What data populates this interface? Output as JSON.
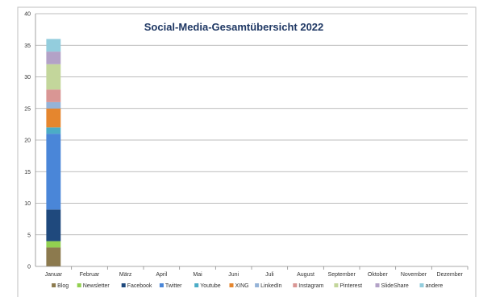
{
  "chart_data": {
    "type": "bar",
    "stacked": true,
    "title": "Social-Media-Gesamtübersicht 2022",
    "title_color": "#1f3864",
    "xlabel": "",
    "ylabel": "",
    "ylim": [
      0,
      40
    ],
    "yticks": [
      "0",
      "5",
      "10",
      "15",
      "20",
      "25",
      "30",
      "35",
      "40"
    ],
    "grid": true,
    "legend_position": "bottom",
    "categories": [
      "Januar",
      "Februar",
      "März",
      "April",
      "Mai",
      "Juni",
      "Juli",
      "August",
      "September",
      "Oktober",
      "November",
      "Dezember"
    ],
    "series": [
      {
        "name": "Blog",
        "color": "#8c7a4e",
        "values": [
          3,
          0,
          0,
          0,
          0,
          0,
          0,
          0,
          0,
          0,
          0,
          0
        ]
      },
      {
        "name": "Newsletter",
        "color": "#92d050",
        "values": [
          1,
          0,
          0,
          0,
          0,
          0,
          0,
          0,
          0,
          0,
          0,
          0
        ]
      },
      {
        "name": "Facebook",
        "color": "#1f497d",
        "values": [
          5,
          0,
          0,
          0,
          0,
          0,
          0,
          0,
          0,
          0,
          0,
          0
        ]
      },
      {
        "name": "Twitter",
        "color": "#4a86d8",
        "values": [
          12,
          0,
          0,
          0,
          0,
          0,
          0,
          0,
          0,
          0,
          0,
          0
        ]
      },
      {
        "name": "Youtube",
        "color": "#4bacc6",
        "values": [
          1,
          0,
          0,
          0,
          0,
          0,
          0,
          0,
          0,
          0,
          0,
          0
        ]
      },
      {
        "name": "XING",
        "color": "#e5862e",
        "values": [
          3,
          0,
          0,
          0,
          0,
          0,
          0,
          0,
          0,
          0,
          0,
          0
        ]
      },
      {
        "name": "LinkedIn",
        "color": "#95b3d7",
        "values": [
          1,
          0,
          0,
          0,
          0,
          0,
          0,
          0,
          0,
          0,
          0,
          0
        ]
      },
      {
        "name": "Instagram",
        "color": "#d99694",
        "values": [
          2,
          0,
          0,
          0,
          0,
          0,
          0,
          0,
          0,
          0,
          0,
          0
        ]
      },
      {
        "name": "Pinterest",
        "color": "#c3d69b",
        "values": [
          4,
          0,
          0,
          0,
          0,
          0,
          0,
          0,
          0,
          0,
          0,
          0
        ]
      },
      {
        "name": "SlideShare",
        "color": "#b3a2c7",
        "values": [
          2,
          0,
          0,
          0,
          0,
          0,
          0,
          0,
          0,
          0,
          0,
          0
        ]
      },
      {
        "name": "andere",
        "color": "#93cddd",
        "values": [
          2,
          0,
          0,
          0,
          0,
          0,
          0,
          0,
          0,
          0,
          0,
          0
        ]
      }
    ]
  }
}
